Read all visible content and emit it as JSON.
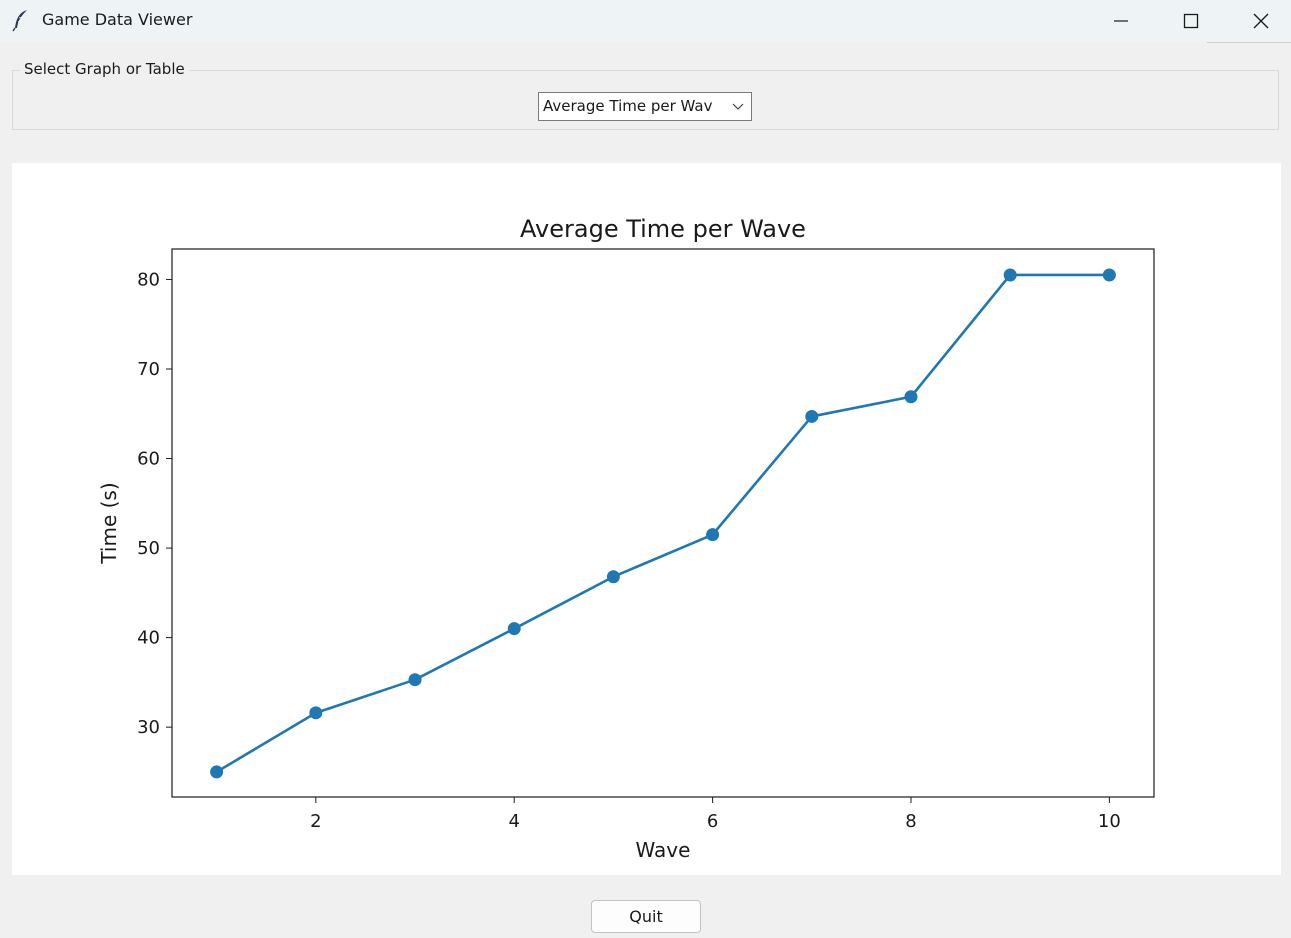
{
  "window": {
    "title": "Game Data Viewer",
    "icon": "feather-icon",
    "controls": [
      "minimize-icon",
      "maximize-icon",
      "close-icon"
    ]
  },
  "selector": {
    "frame_label": "Select Graph or Table",
    "selected_value": "Average Time per Wav"
  },
  "quit_label": "Quit",
  "chart_data": {
    "type": "line",
    "title": "Average Time per Wave",
    "xlabel": "Wave",
    "ylabel": "Time (s)",
    "x": [
      1,
      2,
      3,
      4,
      5,
      6,
      7,
      8,
      9,
      10
    ],
    "series": [
      {
        "values": [
          25.0,
          31.6,
          35.3,
          41.0,
          46.8,
          51.5,
          64.7,
          66.9,
          80.5,
          80.5
        ],
        "color": "#1f77b4"
      }
    ],
    "xlim": [
      0.55,
      10.45
    ],
    "ylim": [
      22.2,
      83.4
    ],
    "xticks": [
      2,
      4,
      6,
      8,
      10
    ],
    "yticks": [
      30,
      40,
      50,
      60,
      70,
      80
    ],
    "grid": false,
    "markers": true
  }
}
